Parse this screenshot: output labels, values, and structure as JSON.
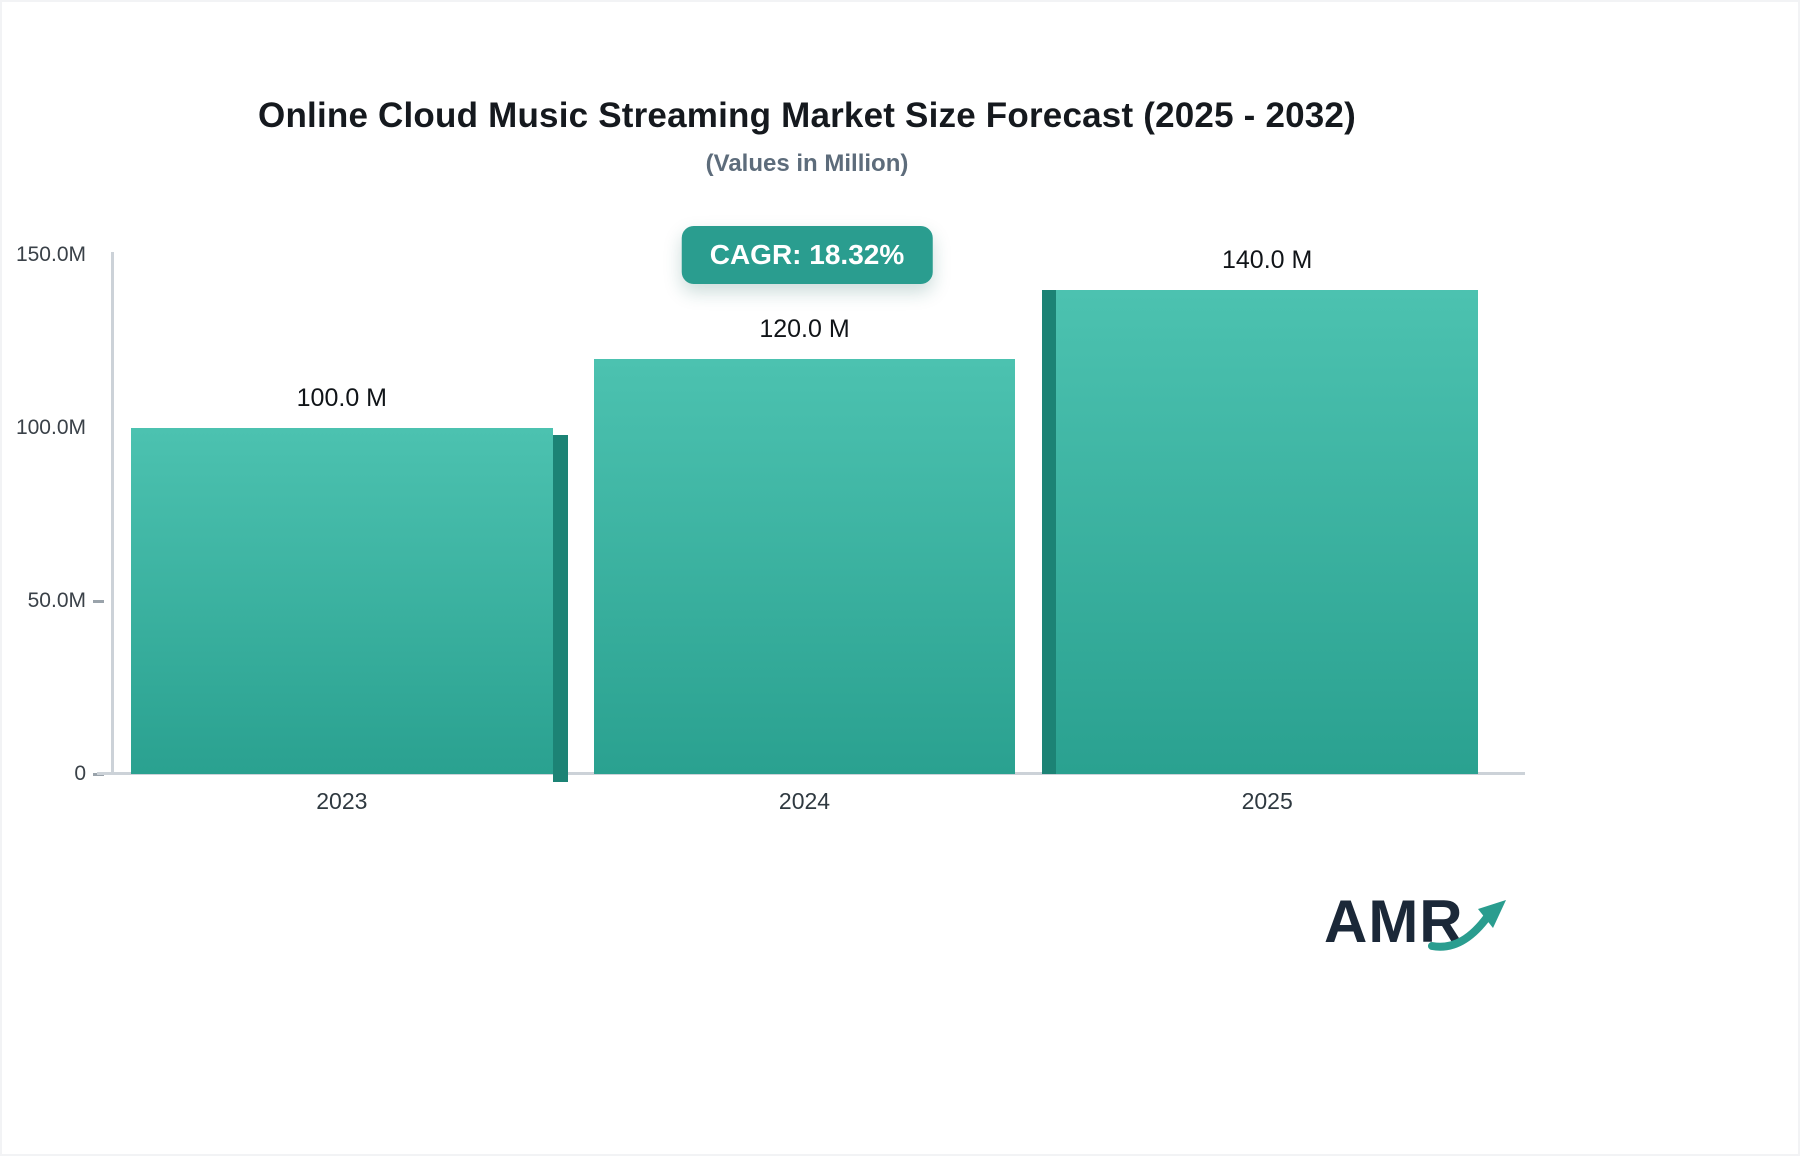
{
  "chart_data": {
    "type": "bar",
    "title": "Online Cloud Music Streaming Market Size Forecast (2025 - 2032)",
    "subtitle": "(Values in Million)",
    "cagr_badge": "CAGR: 18.32%",
    "categories": [
      "2023",
      "2024",
      "2025"
    ],
    "values": [
      100,
      120,
      140
    ],
    "data_labels": [
      "100.0 M",
      "120.0 M",
      "140.0 M"
    ],
    "xlabel": "",
    "ylabel": "",
    "ylim": [
      0,
      150
    ],
    "y_ticks": [
      {
        "label": "150.0M",
        "value": 150,
        "dash": false
      },
      {
        "label": "100.0M",
        "value": 100,
        "dash": false
      },
      {
        "label": "50.0M",
        "value": 50,
        "dash": true
      },
      {
        "label": "0",
        "value": 0,
        "dash": true
      }
    ],
    "grid": false,
    "legend": false,
    "colors": {
      "bar_gradient_top": "#4CC2B0",
      "bar_gradient_bottom": "#2AA190",
      "bar_edge_dark": "#1C8375",
      "badge_bg": "#2A9D8F",
      "title_text": "#15191E",
      "subtitle_text": "#5D6C7B",
      "axis_line": "#CCD2D8",
      "logo_text": "#1B2838",
      "logo_arrow": "#2A9D8F"
    }
  },
  "logo": {
    "text": "AMR"
  }
}
